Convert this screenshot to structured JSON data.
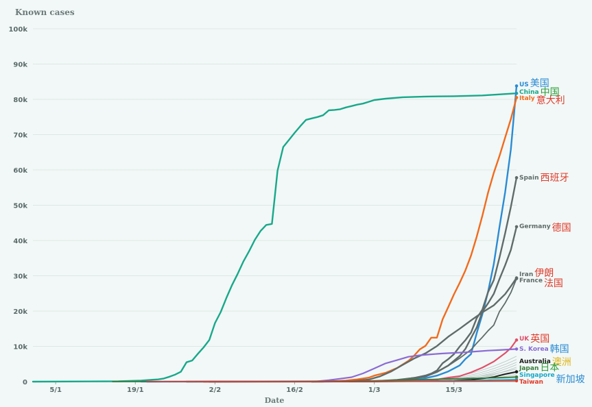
{
  "chart_data": {
    "type": "line",
    "ylabel": "Known cases",
    "xlabel": "Date",
    "ylim": [
      0,
      100000
    ],
    "yticks": [
      {
        "value": 0,
        "label": "0"
      },
      {
        "value": 10000,
        "label": "10k"
      },
      {
        "value": 20000,
        "label": "20k"
      },
      {
        "value": 30000,
        "label": "30k"
      },
      {
        "value": 40000,
        "label": "40k"
      },
      {
        "value": 50000,
        "label": "50k"
      },
      {
        "value": 60000,
        "label": "60k"
      },
      {
        "value": 70000,
        "label": "70k"
      },
      {
        "value": 80000,
        "label": "80k"
      },
      {
        "value": 90000,
        "label": "90k"
      },
      {
        "value": 100000,
        "label": "100k"
      }
    ],
    "xticks": [
      {
        "date": "2020-01-05",
        "label": "5/1"
      },
      {
        "date": "2020-01-19",
        "label": "19/1"
      },
      {
        "date": "2020-02-02",
        "label": "2/2"
      },
      {
        "date": "2020-02-16",
        "label": "16/2"
      },
      {
        "date": "2020-03-01",
        "label": "1/3"
      },
      {
        "date": "2020-03-15",
        "label": "15/3"
      }
    ],
    "xlim": [
      "2020-01-01",
      "2020-03-26"
    ],
    "grid": true,
    "series": [
      {
        "name": "China",
        "label": "China",
        "cn": "中国",
        "color": "#17a88a",
        "cncolor": "#2e9e3a",
        "width": 2.4,
        "points": [
          [
            "2020-01-01",
            0
          ],
          [
            "2020-01-16",
            100
          ],
          [
            "2020-01-20",
            300
          ],
          [
            "2020-01-22",
            550
          ],
          [
            "2020-01-23",
            650
          ],
          [
            "2020-01-24",
            900
          ],
          [
            "2020-01-25",
            1400
          ],
          [
            "2020-01-26",
            2000
          ],
          [
            "2020-01-27",
            2800
          ],
          [
            "2020-01-28",
            5500
          ],
          [
            "2020-01-29",
            6000
          ],
          [
            "2020-01-30",
            7900
          ],
          [
            "2020-01-31",
            9700
          ],
          [
            "2020-02-01",
            11800
          ],
          [
            "2020-02-02",
            16600
          ],
          [
            "2020-02-03",
            19700
          ],
          [
            "2020-02-04",
            23700
          ],
          [
            "2020-02-05",
            27400
          ],
          [
            "2020-02-06",
            30600
          ],
          [
            "2020-02-07",
            34100
          ],
          [
            "2020-02-08",
            37000
          ],
          [
            "2020-02-09",
            40200
          ],
          [
            "2020-02-10",
            42700
          ],
          [
            "2020-02-11",
            44400
          ],
          [
            "2020-02-12",
            44700
          ],
          [
            "2020-02-13",
            59800
          ],
          [
            "2020-02-14",
            66500
          ],
          [
            "2020-02-15",
            68500
          ],
          [
            "2020-02-16",
            70500
          ],
          [
            "2020-02-17",
            72400
          ],
          [
            "2020-02-18",
            74200
          ],
          [
            "2020-02-19",
            74600
          ],
          [
            "2020-02-20",
            75000
          ],
          [
            "2020-02-21",
            75500
          ],
          [
            "2020-02-22",
            76900
          ],
          [
            "2020-02-23",
            77000
          ],
          [
            "2020-02-24",
            77200
          ],
          [
            "2020-02-25",
            77700
          ],
          [
            "2020-02-26",
            78100
          ],
          [
            "2020-02-27",
            78500
          ],
          [
            "2020-02-28",
            78800
          ],
          [
            "2020-02-29",
            79300
          ],
          [
            "2020-03-01",
            79800
          ],
          [
            "2020-03-03",
            80200
          ],
          [
            "2020-03-06",
            80600
          ],
          [
            "2020-03-10",
            80800
          ],
          [
            "2020-03-15",
            80900
          ],
          [
            "2020-03-20",
            81100
          ],
          [
            "2020-03-26",
            81700
          ]
        ]
      },
      {
        "name": "US",
        "label": "US",
        "cn": "美国",
        "color": "#2a8bd4",
        "cncolor": "#2a8bd4",
        "width": 2.4,
        "points": [
          [
            "2020-01-21",
            1
          ],
          [
            "2020-03-01",
            70
          ],
          [
            "2020-03-05",
            220
          ],
          [
            "2020-03-08",
            550
          ],
          [
            "2020-03-10",
            1000
          ],
          [
            "2020-03-12",
            1700
          ],
          [
            "2020-03-14",
            2900
          ],
          [
            "2020-03-16",
            4600
          ],
          [
            "2020-03-17",
            6400
          ],
          [
            "2020-03-18",
            7800
          ],
          [
            "2020-03-19",
            13700
          ],
          [
            "2020-03-20",
            19100
          ],
          [
            "2020-03-21",
            25500
          ],
          [
            "2020-03-22",
            33300
          ],
          [
            "2020-03-23",
            43800
          ],
          [
            "2020-03-24",
            53700
          ],
          [
            "2020-03-25",
            65800
          ],
          [
            "2020-03-26",
            83800
          ]
        ]
      },
      {
        "name": "Italy",
        "label": "Italy",
        "cn": "意大利",
        "color": "#f26a1b",
        "cncolor": "#e03a2a",
        "width": 2.4,
        "points": [
          [
            "2020-01-31",
            2
          ],
          [
            "2020-02-21",
            20
          ],
          [
            "2020-02-23",
            150
          ],
          [
            "2020-02-25",
            320
          ],
          [
            "2020-02-27",
            650
          ],
          [
            "2020-02-29",
            1130
          ],
          [
            "2020-03-01",
            1700
          ],
          [
            "2020-03-03",
            2500
          ],
          [
            "2020-03-05",
            3860
          ],
          [
            "2020-03-07",
            5880
          ],
          [
            "2020-03-08",
            7370
          ],
          [
            "2020-03-09",
            9170
          ],
          [
            "2020-03-10",
            10150
          ],
          [
            "2020-03-11",
            12460
          ],
          [
            "2020-03-12",
            12460
          ],
          [
            "2020-03-13",
            17660
          ],
          [
            "2020-03-14",
            21160
          ],
          [
            "2020-03-15",
            24750
          ],
          [
            "2020-03-16",
            27980
          ],
          [
            "2020-03-17",
            31510
          ],
          [
            "2020-03-18",
            35710
          ],
          [
            "2020-03-19",
            41040
          ],
          [
            "2020-03-20",
            47020
          ],
          [
            "2020-03-21",
            53580
          ],
          [
            "2020-03-22",
            59140
          ],
          [
            "2020-03-23",
            63930
          ],
          [
            "2020-03-24",
            69180
          ],
          [
            "2020-03-25",
            74390
          ],
          [
            "2020-03-26",
            80500
          ]
        ]
      },
      {
        "name": "Spain",
        "label": "Spain",
        "cn": "西班牙",
        "color": "#5f6b6a",
        "cncolor": "#e03a2a",
        "width": 2.4,
        "points": [
          [
            "2020-02-01",
            1
          ],
          [
            "2020-03-01",
            80
          ],
          [
            "2020-03-05",
            260
          ],
          [
            "2020-03-08",
            670
          ],
          [
            "2020-03-09",
            1230
          ],
          [
            "2020-03-10",
            1700
          ],
          [
            "2020-03-11",
            2280
          ],
          [
            "2020-03-12",
            3150
          ],
          [
            "2020-03-13",
            5230
          ],
          [
            "2020-03-14",
            6390
          ],
          [
            "2020-03-15",
            7800
          ],
          [
            "2020-03-16",
            9940
          ],
          [
            "2020-03-17",
            11750
          ],
          [
            "2020-03-18",
            13910
          ],
          [
            "2020-03-19",
            17960
          ],
          [
            "2020-03-20",
            20410
          ],
          [
            "2020-03-21",
            25370
          ],
          [
            "2020-03-22",
            28770
          ],
          [
            "2020-03-23",
            35140
          ],
          [
            "2020-03-24",
            42060
          ],
          [
            "2020-03-25",
            49520
          ],
          [
            "2020-03-26",
            57800
          ]
        ]
      },
      {
        "name": "Germany",
        "label": "Germany",
        "cn": "德国",
        "color": "#5f6b6a",
        "cncolor": "#e03a2a",
        "width": 2.4,
        "points": [
          [
            "2020-01-28",
            4
          ],
          [
            "2020-03-01",
            130
          ],
          [
            "2020-03-05",
            480
          ],
          [
            "2020-03-08",
            1040
          ],
          [
            "2020-03-10",
            1460
          ],
          [
            "2020-03-12",
            2740
          ],
          [
            "2020-03-14",
            4590
          ],
          [
            "2020-03-16",
            7270
          ],
          [
            "2020-03-17",
            9260
          ],
          [
            "2020-03-18",
            12330
          ],
          [
            "2020-03-19",
            15320
          ],
          [
            "2020-03-20",
            19850
          ],
          [
            "2020-03-21",
            22210
          ],
          [
            "2020-03-22",
            24870
          ],
          [
            "2020-03-23",
            29060
          ],
          [
            "2020-03-24",
            32990
          ],
          [
            "2020-03-25",
            37320
          ],
          [
            "2020-03-26",
            43900
          ]
        ]
      },
      {
        "name": "Iran",
        "label": "Iran",
        "cn": "伊朗",
        "color": "#5f6b6a",
        "cncolor": "#e03a2a",
        "width": 2.4,
        "points": [
          [
            "2020-02-19",
            2
          ],
          [
            "2020-02-23",
            40
          ],
          [
            "2020-02-26",
            140
          ],
          [
            "2020-02-29",
            590
          ],
          [
            "2020-03-02",
            1500
          ],
          [
            "2020-03-04",
            2920
          ],
          [
            "2020-03-06",
            4750
          ],
          [
            "2020-03-08",
            6570
          ],
          [
            "2020-03-10",
            8040
          ],
          [
            "2020-03-12",
            10080
          ],
          [
            "2020-03-14",
            12730
          ],
          [
            "2020-03-16",
            14990
          ],
          [
            "2020-03-18",
            17360
          ],
          [
            "2020-03-20",
            19640
          ],
          [
            "2020-03-22",
            21640
          ],
          [
            "2020-03-24",
            24810
          ],
          [
            "2020-03-25",
            27020
          ],
          [
            "2020-03-26",
            29400
          ]
        ]
      },
      {
        "name": "France",
        "label": "France",
        "cn": "法国",
        "color": "#5f6b6a",
        "cncolor": "#e03a2a",
        "width": 1.8,
        "points": [
          [
            "2020-01-24",
            2
          ],
          [
            "2020-03-01",
            130
          ],
          [
            "2020-03-05",
            420
          ],
          [
            "2020-03-08",
            1120
          ],
          [
            "2020-03-10",
            1780
          ],
          [
            "2020-03-12",
            2880
          ],
          [
            "2020-03-14",
            4500
          ],
          [
            "2020-03-16",
            6650
          ],
          [
            "2020-03-18",
            9050
          ],
          [
            "2020-03-19",
            10890
          ],
          [
            "2020-03-20",
            12610
          ],
          [
            "2020-03-21",
            14430
          ],
          [
            "2020-03-22",
            16010
          ],
          [
            "2020-03-23",
            19860
          ],
          [
            "2020-03-24",
            22300
          ],
          [
            "2020-03-25",
            25230
          ],
          [
            "2020-03-26",
            29200
          ]
        ]
      },
      {
        "name": "UK",
        "label": "UK",
        "cn": "英国",
        "color": "#e0506a",
        "cncolor": "#e03a2a",
        "width": 2.2,
        "points": [
          [
            "2020-01-31",
            2
          ],
          [
            "2020-03-01",
            35
          ],
          [
            "2020-03-05",
            115
          ],
          [
            "2020-03-08",
            270
          ],
          [
            "2020-03-10",
            380
          ],
          [
            "2020-03-12",
            590
          ],
          [
            "2020-03-14",
            1140
          ],
          [
            "2020-03-16",
            1550
          ],
          [
            "2020-03-18",
            2630
          ],
          [
            "2020-03-20",
            3980
          ],
          [
            "2020-03-22",
            5680
          ],
          [
            "2020-03-24",
            8080
          ],
          [
            "2020-03-25",
            9530
          ],
          [
            "2020-03-26",
            11800
          ]
        ]
      },
      {
        "name": "S. Korea",
        "label": "S. Korea",
        "cn": "韩国",
        "color": "#8a6ad4",
        "cncolor": "#2a8bd4",
        "width": 2.2,
        "points": [
          [
            "2020-01-20",
            1
          ],
          [
            "2020-02-18",
            31
          ],
          [
            "2020-02-20",
            104
          ],
          [
            "2020-02-22",
            433
          ],
          [
            "2020-02-24",
            833
          ],
          [
            "2020-02-26",
            1261
          ],
          [
            "2020-02-28",
            2337
          ],
          [
            "2020-03-01",
            3736
          ],
          [
            "2020-03-03",
            5186
          ],
          [
            "2020-03-05",
            6088
          ],
          [
            "2020-03-07",
            7041
          ],
          [
            "2020-03-09",
            7478
          ],
          [
            "2020-03-11",
            7755
          ],
          [
            "2020-03-13",
            7979
          ],
          [
            "2020-03-15",
            8162
          ],
          [
            "2020-03-17",
            8320
          ],
          [
            "2020-03-19",
            8565
          ],
          [
            "2020-03-21",
            8799
          ],
          [
            "2020-03-23",
            8961
          ],
          [
            "2020-03-26",
            9240
          ]
        ]
      },
      {
        "name": "Australia",
        "label": "Australia",
        "cn": "澳洲",
        "color": "#1a1a1a",
        "cncolor": "#e0b414",
        "width": 1.8,
        "points": [
          [
            "2020-01-25",
            1
          ],
          [
            "2020-03-01",
            29
          ],
          [
            "2020-03-10",
            100
          ],
          [
            "2020-03-15",
            300
          ],
          [
            "2020-03-18",
            560
          ],
          [
            "2020-03-20",
            870
          ],
          [
            "2020-03-22",
            1320
          ],
          [
            "2020-03-24",
            2140
          ],
          [
            "2020-03-26",
            2800
          ]
        ]
      },
      {
        "name": "Japan",
        "label": "Japan",
        "cn": "日本",
        "color": "#3a7a3a",
        "cncolor": "#2e9e3a",
        "width": 1.8,
        "points": [
          [
            "2020-01-15",
            1
          ],
          [
            "2020-02-15",
            53
          ],
          [
            "2020-03-01",
            256
          ],
          [
            "2020-03-10",
            580
          ],
          [
            "2020-03-15",
            840
          ],
          [
            "2020-03-20",
            1000
          ],
          [
            "2020-03-26",
            1300
          ]
        ]
      },
      {
        "name": "Singapore",
        "label": "Singapore",
        "cn": "新加坡",
        "color": "#17a8c8",
        "cncolor": "#2a8bd4",
        "width": 1.6,
        "points": [
          [
            "2020-01-23",
            1
          ],
          [
            "2020-02-15",
            72
          ],
          [
            "2020-03-01",
            106
          ],
          [
            "2020-03-10",
            160
          ],
          [
            "2020-03-15",
            226
          ],
          [
            "2020-03-20",
            385
          ],
          [
            "2020-03-26",
            630
          ]
        ]
      },
      {
        "name": "Taiwan",
        "label": "Taiwan",
        "cn": "",
        "color": "#e03a2a",
        "cncolor": "#e03a2a",
        "width": 1.6,
        "points": [
          [
            "2020-01-21",
            1
          ],
          [
            "2020-02-15",
            18
          ],
          [
            "2020-03-01",
            40
          ],
          [
            "2020-03-15",
            59
          ],
          [
            "2020-03-20",
            135
          ],
          [
            "2020-03-26",
            250
          ]
        ]
      }
    ]
  }
}
